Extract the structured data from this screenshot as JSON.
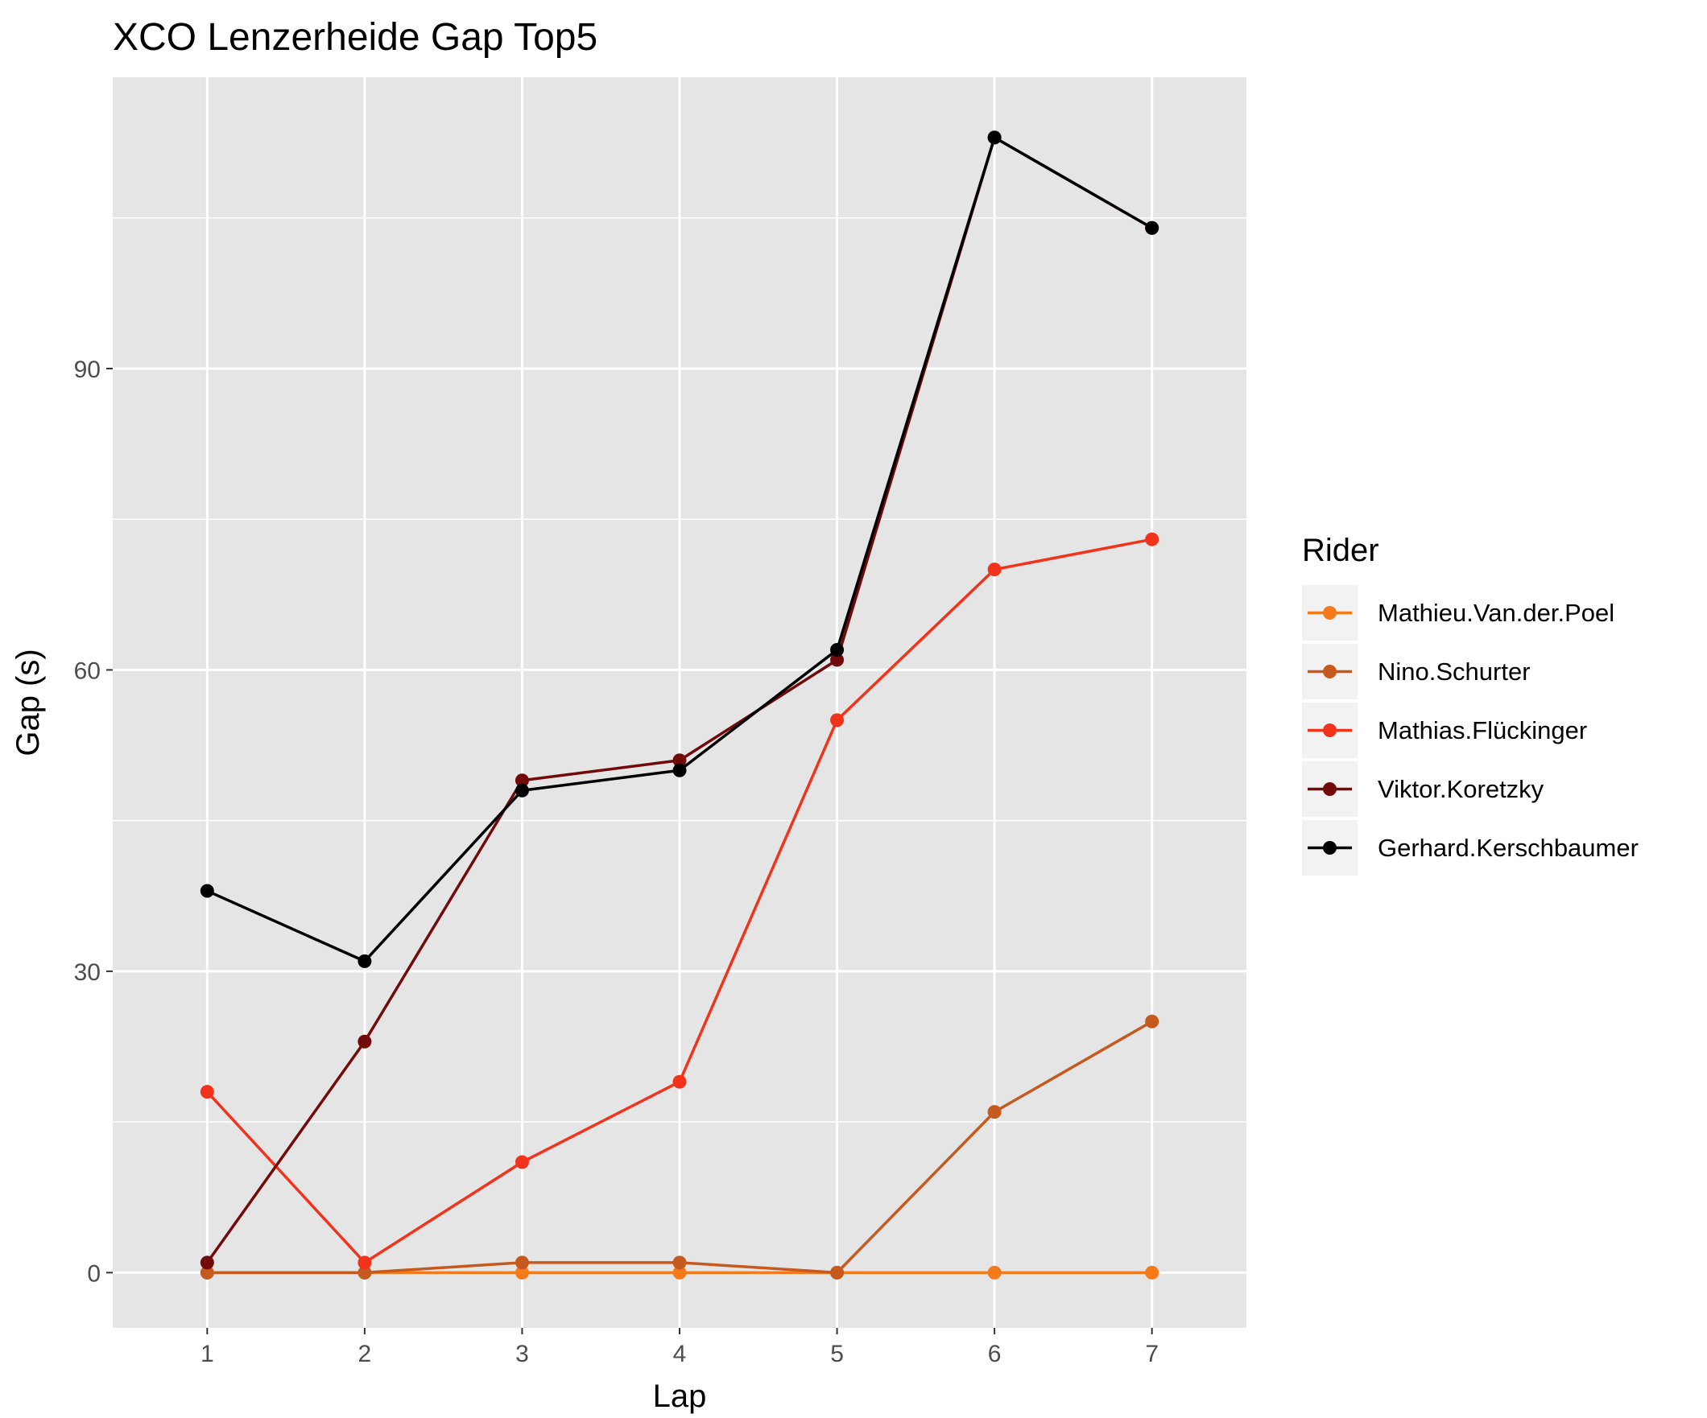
{
  "chart_data": {
    "type": "line",
    "title": "XCO Lenzerheide Gap Top5",
    "xlabel": "Lap",
    "ylabel": "Gap (s)",
    "x": [
      1,
      2,
      3,
      4,
      5,
      6,
      7
    ],
    "x_ticks": [
      "1",
      "2",
      "3",
      "4",
      "5",
      "6",
      "7"
    ],
    "xlim": [
      0.4,
      7.6
    ],
    "y_ticks": [
      "0",
      "30",
      "60",
      "90"
    ],
    "ylim": [
      -5.5,
      119
    ],
    "grid": true,
    "legend_position": "right",
    "legend_title": "Rider",
    "series": [
      {
        "name": "Mathieu.Van.der.Poel",
        "color": "#f57a19",
        "values": [
          0,
          0,
          0,
          0,
          0,
          0,
          0
        ]
      },
      {
        "name": "Nino.Schurter",
        "color": "#c65a1e",
        "values": [
          0,
          0,
          1,
          1,
          0,
          16,
          25
        ]
      },
      {
        "name": "Mathias.Flückinger",
        "color": "#f2331c",
        "values": [
          18,
          1,
          11,
          19,
          55,
          70,
          73
        ]
      },
      {
        "name": "Viktor.Koretzky",
        "color": "#720a0a",
        "values": [
          1,
          23,
          49,
          51,
          61,
          113,
          104
        ]
      },
      {
        "name": "Gerhard.Kerschbaumer",
        "color": "#000000",
        "values": [
          38,
          31,
          48,
          50,
          62,
          113,
          104
        ]
      }
    ]
  }
}
